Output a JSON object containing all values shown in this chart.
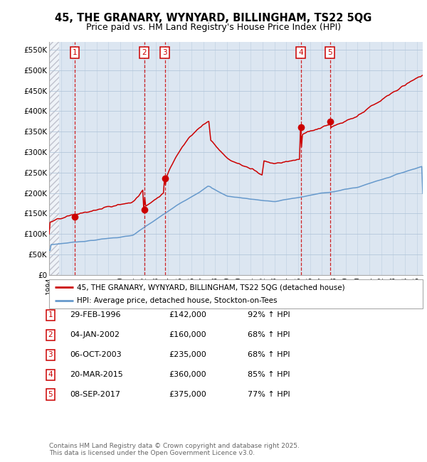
{
  "title1": "45, THE GRANARY, WYNYARD, BILLINGHAM, TS22 5QG",
  "title2": "Price paid vs. HM Land Registry's House Price Index (HPI)",
  "ylabel_ticks": [
    "£0",
    "£50K",
    "£100K",
    "£150K",
    "£200K",
    "£250K",
    "£300K",
    "£350K",
    "£400K",
    "£450K",
    "£500K",
    "£550K"
  ],
  "ytick_values": [
    0,
    50000,
    100000,
    150000,
    200000,
    250000,
    300000,
    350000,
    400000,
    450000,
    500000,
    550000
  ],
  "ylim": [
    0,
    570000
  ],
  "xlim_start": 1994.0,
  "xlim_end": 2025.5,
  "sale_dates": [
    1996.16,
    2002.01,
    2003.76,
    2015.22,
    2017.68
  ],
  "sale_prices": [
    142000,
    160000,
    235000,
    360000,
    375000
  ],
  "sale_labels": [
    "1",
    "2",
    "3",
    "4",
    "5"
  ],
  "vline_dates": [
    1996.16,
    2002.01,
    2003.76,
    2015.22,
    2017.68
  ],
  "legend_line1": "45, THE GRANARY, WYNYARD, BILLINGHAM, TS22 5QG (detached house)",
  "legend_line2": "HPI: Average price, detached house, Stockton-on-Tees",
  "table_rows": [
    {
      "num": "1",
      "date": "29-FEB-1996",
      "price": "£142,000",
      "hpi": "92% ↑ HPI"
    },
    {
      "num": "2",
      "date": "04-JAN-2002",
      "price": "£160,000",
      "hpi": "68% ↑ HPI"
    },
    {
      "num": "3",
      "date": "06-OCT-2003",
      "price": "£235,000",
      "hpi": "68% ↑ HPI"
    },
    {
      "num": "4",
      "date": "20-MAR-2015",
      "price": "£360,000",
      "hpi": "85% ↑ HPI"
    },
    {
      "num": "5",
      "date": "08-SEP-2017",
      "price": "£375,000",
      "hpi": "77% ↑ HPI"
    }
  ],
  "footnote": "Contains HM Land Registry data © Crown copyright and database right 2025.\nThis data is licensed under the Open Government Licence v3.0.",
  "red_color": "#cc0000",
  "blue_color": "#6699cc",
  "bg_color": "#dce6f1",
  "plot_bg": "#ffffff",
  "grid_color": "#b0c4d8"
}
